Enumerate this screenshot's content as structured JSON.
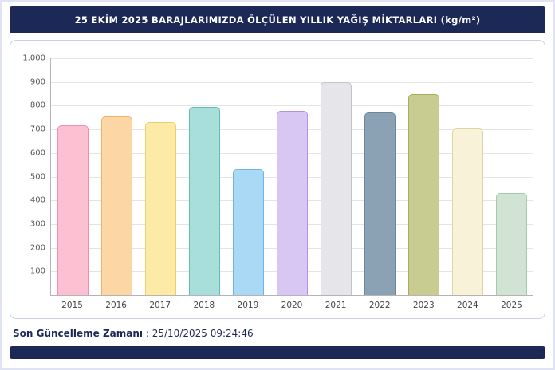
{
  "header": {
    "title": "25 EKİM 2025 BARAJLARIMIZDA ÖLÇÜLEN YILLIK YAĞIŞ MİKTARLARI (kg/m²)",
    "bg_color": "#1c2957",
    "text_color": "#ffffff"
  },
  "chart_data": {
    "type": "bar",
    "title": "25 EKİM 2025 BARAJLARIMIZDA ÖLÇÜLEN YILLIK YAĞIŞ MİKTARLARI (kg/m²)",
    "categories": [
      "2015",
      "2016",
      "2017",
      "2018",
      "2019",
      "2020",
      "2021",
      "2022",
      "2023",
      "2024",
      "2025"
    ],
    "values": [
      716,
      755,
      731,
      796,
      531,
      777,
      899,
      770,
      848,
      704,
      431
    ],
    "xlabel": "",
    "ylabel": "",
    "ylim": [
      0,
      1000
    ],
    "ytick_values": [
      100,
      200,
      300,
      400,
      500,
      600,
      700,
      800,
      900,
      1000
    ],
    "ytick_labels": [
      "100",
      "200",
      "300",
      "400",
      "500",
      "600",
      "700",
      "800",
      "900",
      "1.000"
    ],
    "grid": true,
    "legend": "none",
    "bar_colors": [
      {
        "fill": "#fbc0d1",
        "border": "#ef8fb0"
      },
      {
        "fill": "#fcd6a4",
        "border": "#eeb269"
      },
      {
        "fill": "#fdeaa6",
        "border": "#e9d06a"
      },
      {
        "fill": "#a9dfdb",
        "border": "#5fbdb7"
      },
      {
        "fill": "#a9d9f5",
        "border": "#6db5e3"
      },
      {
        "fill": "#d9c7f3",
        "border": "#b292e6"
      },
      {
        "fill": "#e6e6ea",
        "border": "#c2c2c9"
      },
      {
        "fill": "#8aa2b4",
        "border": "#69889f"
      },
      {
        "fill": "#c9cc90",
        "border": "#a7ac61"
      },
      {
        "fill": "#f8f2d8",
        "border": "#ded3a2"
      },
      {
        "fill": "#d1e4d4",
        "border": "#a6c8ab"
      }
    ]
  },
  "footer": {
    "update_label": "Son Güncelleme Zamanı",
    "separator": " : ",
    "update_value": "25/10/2025 09:24:46",
    "bar_color": "#1c2957"
  }
}
